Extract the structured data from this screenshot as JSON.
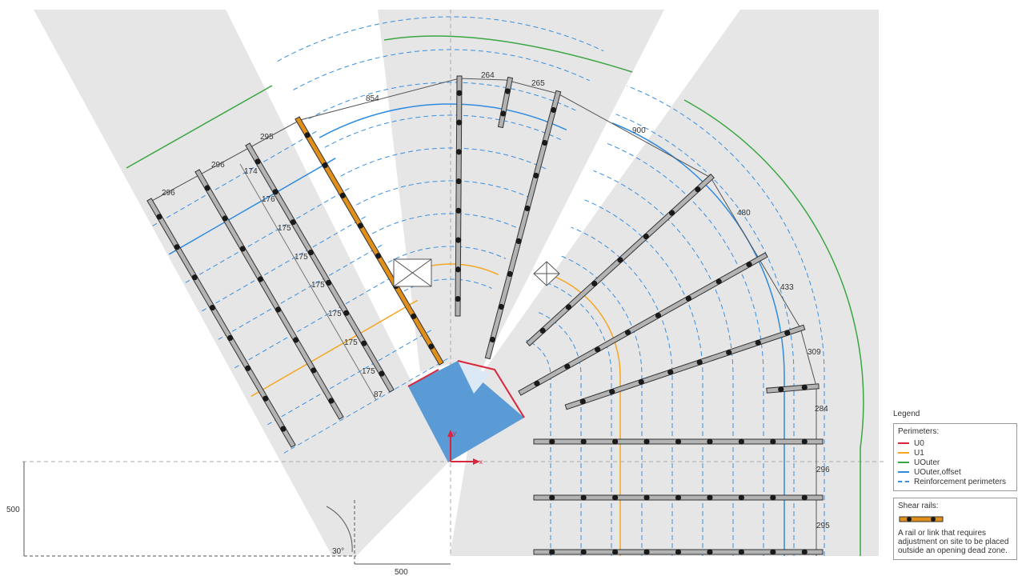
{
  "colors": {
    "zone_fill": "#e6e6e6",
    "column_fill": "#5b9bd5",
    "u0": "#d7263d",
    "u1": "#f5a623",
    "uouter": "#3aa641",
    "uouter_offset": "#2f8be0",
    "reinforcement": "#3a8fe0",
    "rail": "#b3b3b3",
    "rail_warning": "#e0901a",
    "stud": "#1a1a1a"
  },
  "icons": {
    "opening_rect": "rect-cross-icon",
    "opening_diamond": "diamond-cross-icon",
    "axes": "xy-axes-icon"
  },
  "axes": {
    "x_label": "x",
    "y_label": "y"
  },
  "dimensions": {
    "top": [
      "854",
      "264",
      "265",
      "900"
    ],
    "left_spacing": [
      "296",
      "296",
      "295"
    ],
    "rail_spacing": [
      "174",
      "176",
      "175",
      "175",
      "175",
      "175",
      "175",
      "175",
      "87"
    ],
    "right": [
      "480",
      "433",
      "309",
      "284",
      "296",
      "295"
    ],
    "bottom_width": "500",
    "left_height": "500",
    "angle": "30°"
  },
  "legend": {
    "title": "Legend",
    "perimeters_heading": "Perimeters:",
    "items": [
      {
        "label": "U0",
        "color": "#d7263d",
        "style": "solid"
      },
      {
        "label": "U1",
        "color": "#f5a623",
        "style": "solid"
      },
      {
        "label": "UOuter",
        "color": "#3aa641",
        "style": "solid"
      },
      {
        "label": "UOuter,offset",
        "color": "#2f8be0",
        "style": "solid"
      },
      {
        "label": "Reinforcement perimeters",
        "color": "#3a8fe0",
        "style": "dashed"
      }
    ],
    "shear_heading": "Shear rails:",
    "shear_note": "A rail or link that requires adjustment on site to be placed outside an opening dead zone."
  }
}
